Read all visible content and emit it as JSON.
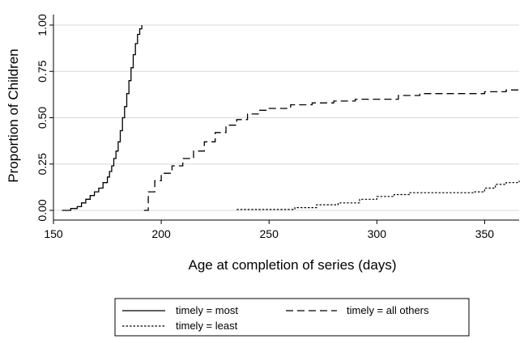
{
  "chart_data": {
    "type": "line",
    "subtype": "step",
    "title": "",
    "xlabel": "Age at completion of series (days)",
    "ylabel": "Proportion of Children",
    "xlim": [
      150,
      366
    ],
    "ylim": [
      0,
      1
    ],
    "x_ticks": [
      150,
      200,
      250,
      300,
      350
    ],
    "y_ticks": [
      0,
      0.25,
      0.5,
      0.75,
      1
    ],
    "x_tick_labels": [
      "150",
      "200",
      "250",
      "300",
      "350"
    ],
    "y_tick_labels": [
      "0.00",
      "0.25",
      "0.50",
      "0.75",
      "1.00"
    ],
    "grid": "horizontal",
    "legend_position": "bottom",
    "series": [
      {
        "name": "timely = most",
        "style": "solid",
        "color": "#000000",
        "x": [
          154,
          158,
          161,
          163,
          165,
          167,
          169,
          171,
          173,
          175,
          176,
          177,
          178,
          179,
          180,
          181,
          182,
          183,
          184,
          185,
          186,
          187,
          188,
          189,
          190,
          191
        ],
        "y": [
          0.0,
          0.01,
          0.02,
          0.04,
          0.06,
          0.08,
          0.1,
          0.12,
          0.15,
          0.18,
          0.21,
          0.24,
          0.28,
          0.32,
          0.37,
          0.43,
          0.5,
          0.56,
          0.63,
          0.7,
          0.77,
          0.84,
          0.9,
          0.95,
          0.98,
          1.0
        ]
      },
      {
        "name": "timely = all others",
        "style": "dash",
        "color": "#000000",
        "x": [
          192,
          194,
          197,
          200,
          205,
          210,
          215,
          220,
          225,
          230,
          235,
          240,
          245,
          250,
          260,
          270,
          280,
          290,
          300,
          310,
          320,
          330,
          340,
          350,
          360,
          366
        ],
        "y": [
          0.0,
          0.1,
          0.16,
          0.2,
          0.24,
          0.28,
          0.32,
          0.37,
          0.42,
          0.46,
          0.49,
          0.52,
          0.54,
          0.55,
          0.57,
          0.58,
          0.59,
          0.6,
          0.6,
          0.62,
          0.63,
          0.63,
          0.63,
          0.64,
          0.65,
          0.65
        ]
      },
      {
        "name": "timely = least",
        "style": "dot",
        "color": "#000000",
        "x": [
          235,
          262,
          272,
          282,
          292,
          300,
          308,
          315,
          330,
          345,
          350,
          355,
          360,
          366
        ],
        "y": [
          0.005,
          0.015,
          0.03,
          0.04,
          0.06,
          0.075,
          0.085,
          0.095,
          0.095,
          0.1,
          0.12,
          0.14,
          0.15,
          0.16
        ]
      }
    ]
  }
}
